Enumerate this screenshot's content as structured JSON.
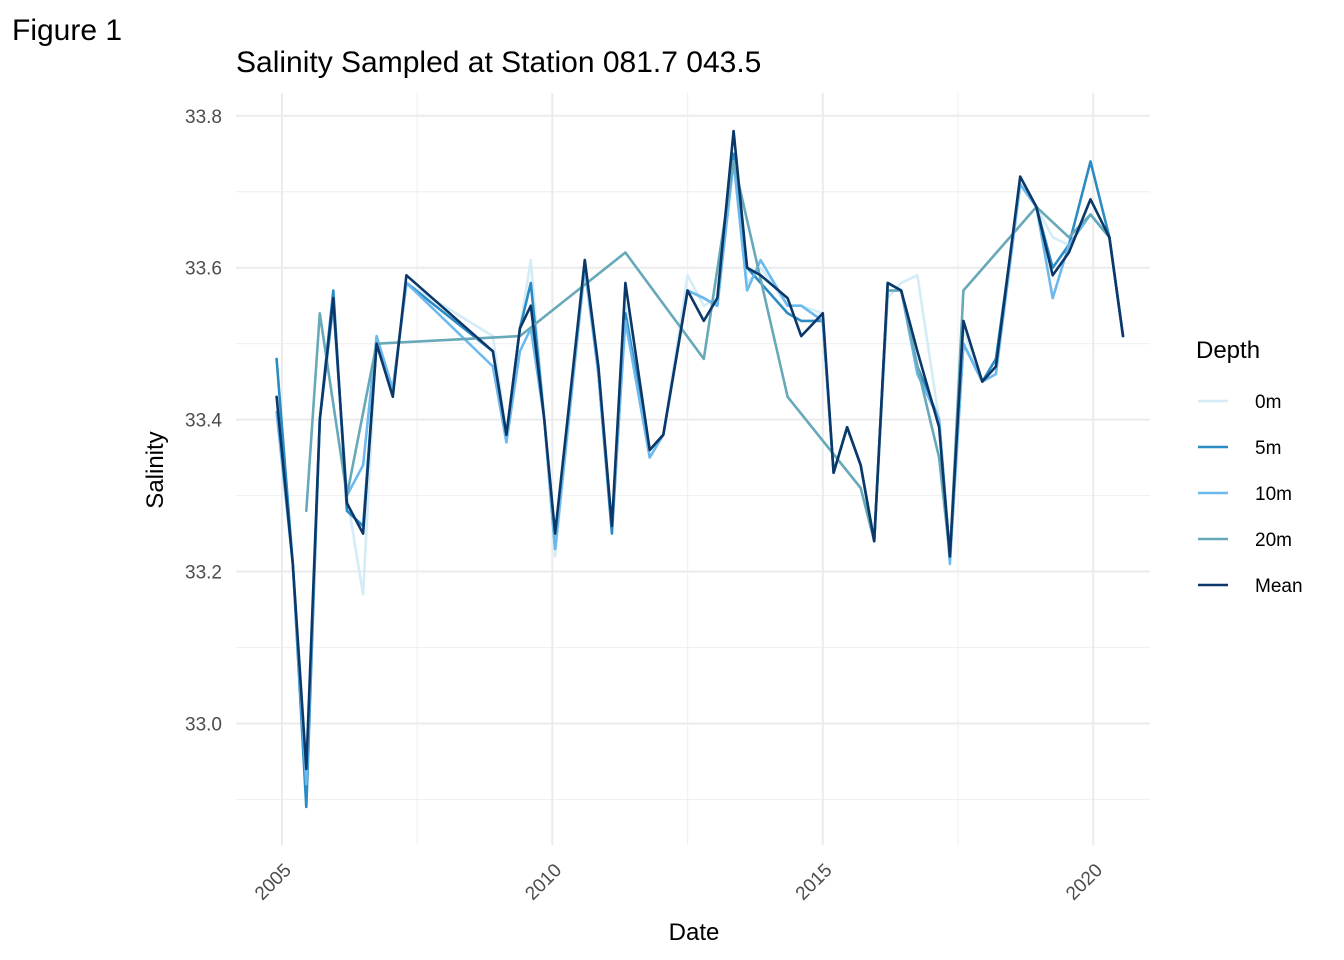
{
  "figure_label": "Figure 1",
  "chart_data": {
    "type": "line",
    "title": "Salinity Sampled at Station 081.7 043.5",
    "xlabel": "Date",
    "ylabel": "Salinity",
    "xlim": [
      2004.15,
      2021.05
    ],
    "ylim": [
      32.84,
      33.83
    ],
    "x_ticks": [
      2005,
      2010,
      2015,
      2020
    ],
    "x_tick_labels": [
      "2005",
      "2010",
      "2015",
      "2020"
    ],
    "y_ticks": [
      33.0,
      33.2,
      33.4,
      33.6,
      33.8
    ],
    "y_tick_labels": [
      "33.0",
      "33.2",
      "33.4",
      "33.6",
      "33.8"
    ],
    "grid": true,
    "legend_title": "Depth",
    "legend_position": "right",
    "series": [
      {
        "name": "0m",
        "color": "#d4ecf5",
        "points": [
          [
            2004.9,
            33.41
          ],
          [
            2005.2,
            33.21
          ],
          [
            2005.45,
            32.95
          ],
          [
            2005.7,
            33.4
          ],
          [
            2005.95,
            33.55
          ],
          [
            2006.2,
            33.3
          ],
          [
            2006.5,
            33.17
          ],
          [
            2006.75,
            33.51
          ],
          [
            2007.05,
            33.44
          ],
          [
            2007.3,
            33.58
          ],
          [
            2008.9,
            33.51
          ],
          [
            2009.15,
            33.38
          ],
          [
            2009.4,
            33.52
          ],
          [
            2009.6,
            33.61
          ],
          [
            2009.85,
            33.4
          ],
          [
            2010.05,
            33.22
          ],
          [
            2010.6,
            33.6
          ],
          [
            2010.85,
            33.46
          ],
          [
            2011.1,
            33.26
          ],
          [
            2011.35,
            33.55
          ],
          [
            2011.8,
            33.36
          ],
          [
            2012.05,
            33.38
          ],
          [
            2012.5,
            33.59
          ],
          [
            2012.8,
            33.55
          ],
          [
            2013.05,
            33.56
          ],
          [
            2013.35,
            33.75
          ],
          [
            2013.6,
            33.58
          ],
          [
            2013.85,
            33.6
          ],
          [
            2014.35,
            33.55
          ],
          [
            2014.6,
            33.55
          ],
          [
            2015.0,
            33.54
          ],
          [
            2015.2,
            33.33
          ],
          [
            2015.45,
            33.39
          ],
          [
            2015.7,
            33.34
          ],
          [
            2015.95,
            33.24
          ],
          [
            2016.2,
            33.56
          ],
          [
            2016.45,
            33.58
          ],
          [
            2016.75,
            33.59
          ],
          [
            2017.15,
            33.4
          ],
          [
            2017.35,
            33.22
          ],
          [
            2017.6,
            33.52
          ],
          [
            2017.95,
            33.45
          ],
          [
            2018.2,
            33.47
          ],
          [
            2018.65,
            33.71
          ],
          [
            2018.95,
            33.68
          ],
          [
            2019.25,
            33.64
          ],
          [
            2019.55,
            33.63
          ],
          [
            2019.95,
            33.67
          ],
          [
            2020.3,
            33.64
          ],
          [
            2020.55,
            33.51
          ]
        ]
      },
      {
        "name": "5m",
        "color": "#2b8cc4",
        "points": [
          [
            2004.9,
            33.48
          ],
          [
            2005.2,
            33.21
          ],
          [
            2005.45,
            32.89
          ],
          [
            2005.7,
            33.4
          ],
          [
            2005.95,
            33.57
          ],
          [
            2006.2,
            33.28
          ],
          [
            2006.5,
            33.26
          ],
          [
            2006.75,
            33.5
          ],
          [
            2007.05,
            33.44
          ],
          [
            2007.3,
            33.58
          ],
          [
            2008.9,
            33.49
          ],
          [
            2009.15,
            33.38
          ],
          [
            2009.4,
            33.52
          ],
          [
            2009.6,
            33.58
          ],
          [
            2009.85,
            33.4
          ],
          [
            2010.05,
            33.23
          ],
          [
            2010.6,
            33.61
          ],
          [
            2010.85,
            33.46
          ],
          [
            2011.1,
            33.25
          ],
          [
            2011.35,
            33.54
          ],
          [
            2011.8,
            33.36
          ],
          [
            2012.05,
            33.38
          ],
          [
            2012.5,
            33.57
          ],
          [
            2012.8,
            33.56
          ],
          [
            2013.05,
            33.55
          ],
          [
            2013.35,
            33.75
          ],
          [
            2013.6,
            33.6
          ],
          [
            2013.85,
            33.58
          ],
          [
            2014.35,
            33.54
          ],
          [
            2014.6,
            33.53
          ],
          [
            2015.0,
            33.53
          ],
          [
            2015.2,
            33.33
          ],
          [
            2015.45,
            33.39
          ],
          [
            2015.7,
            33.34
          ],
          [
            2015.95,
            33.24
          ],
          [
            2016.2,
            33.58
          ],
          [
            2016.45,
            33.57
          ],
          [
            2016.75,
            33.47
          ],
          [
            2017.15,
            33.4
          ],
          [
            2017.35,
            33.22
          ],
          [
            2017.6,
            33.5
          ],
          [
            2017.95,
            33.45
          ],
          [
            2018.2,
            33.48
          ],
          [
            2018.65,
            33.71
          ],
          [
            2018.95,
            33.68
          ],
          [
            2019.25,
            33.6
          ],
          [
            2019.55,
            33.63
          ],
          [
            2019.95,
            33.74
          ],
          [
            2020.3,
            33.64
          ],
          [
            2020.55,
            33.51
          ]
        ]
      },
      {
        "name": "10m",
        "color": "#6cb9ee",
        "points": [
          [
            2004.9,
            33.41
          ],
          [
            2005.2,
            33.21
          ],
          [
            2005.45,
            32.92
          ],
          [
            2005.7,
            33.4
          ],
          [
            2005.95,
            33.55
          ],
          [
            2006.2,
            33.3
          ],
          [
            2006.5,
            33.34
          ],
          [
            2006.75,
            33.51
          ],
          [
            2007.05,
            33.44
          ],
          [
            2007.3,
            33.58
          ],
          [
            2008.9,
            33.47
          ],
          [
            2009.15,
            33.37
          ],
          [
            2009.4,
            33.49
          ],
          [
            2009.6,
            33.52
          ],
          [
            2009.85,
            33.4
          ],
          [
            2010.05,
            33.23
          ],
          [
            2010.6,
            33.6
          ],
          [
            2010.85,
            33.46
          ],
          [
            2011.1,
            33.26
          ],
          [
            2011.35,
            33.53
          ],
          [
            2011.8,
            33.35
          ],
          [
            2012.05,
            33.38
          ],
          [
            2012.5,
            33.57
          ],
          [
            2012.8,
            33.56
          ],
          [
            2013.05,
            33.55
          ],
          [
            2013.35,
            33.74
          ],
          [
            2013.6,
            33.57
          ],
          [
            2013.85,
            33.61
          ],
          [
            2014.35,
            33.55
          ],
          [
            2014.6,
            33.55
          ],
          [
            2015.0,
            33.53
          ],
          [
            2015.2,
            33.33
          ],
          [
            2015.45,
            33.39
          ],
          [
            2015.7,
            33.34
          ],
          [
            2015.95,
            33.24
          ],
          [
            2016.2,
            33.57
          ],
          [
            2016.45,
            33.57
          ],
          [
            2016.75,
            33.46
          ],
          [
            2017.15,
            33.4
          ],
          [
            2017.35,
            33.21
          ],
          [
            2017.6,
            33.5
          ],
          [
            2017.95,
            33.45
          ],
          [
            2018.2,
            33.46
          ],
          [
            2018.65,
            33.71
          ],
          [
            2018.95,
            33.68
          ],
          [
            2019.25,
            33.56
          ],
          [
            2019.55,
            33.63
          ],
          [
            2019.95,
            33.67
          ],
          [
            2020.3,
            33.64
          ],
          [
            2020.55,
            33.51
          ]
        ]
      },
      {
        "name": "20m",
        "color": "#67a9b8",
        "points": [
          [
            2005.45,
            33.28
          ],
          [
            2005.7,
            33.54
          ],
          [
            2006.2,
            33.3
          ],
          [
            2006.75,
            33.5
          ],
          [
            2009.4,
            33.51
          ],
          [
            2011.35,
            33.62
          ],
          [
            2012.8,
            33.48
          ],
          [
            2013.35,
            33.74
          ],
          [
            2014.35,
            33.43
          ],
          [
            2015.7,
            33.31
          ],
          [
            2015.95,
            33.24
          ],
          [
            2016.2,
            33.57
          ],
          [
            2016.45,
            33.57
          ],
          [
            2016.75,
            33.47
          ],
          [
            2017.15,
            33.35
          ],
          [
            2017.35,
            33.22
          ],
          [
            2017.6,
            33.57
          ],
          [
            2018.95,
            33.68
          ],
          [
            2019.55,
            33.64
          ],
          [
            2019.95,
            33.67
          ],
          [
            2020.3,
            33.64
          ],
          [
            2020.55,
            33.51
          ]
        ]
      },
      {
        "name": "Mean",
        "color": "#0b3868",
        "points": [
          [
            2004.9,
            33.43
          ],
          [
            2005.2,
            33.21
          ],
          [
            2005.45,
            32.94
          ],
          [
            2005.7,
            33.4
          ],
          [
            2005.95,
            33.56
          ],
          [
            2006.2,
            33.29
          ],
          [
            2006.5,
            33.25
          ],
          [
            2006.75,
            33.5
          ],
          [
            2007.05,
            33.43
          ],
          [
            2007.3,
            33.59
          ],
          [
            2008.9,
            33.49
          ],
          [
            2009.15,
            33.38
          ],
          [
            2009.4,
            33.52
          ],
          [
            2009.6,
            33.55
          ],
          [
            2009.85,
            33.4
          ],
          [
            2010.05,
            33.25
          ],
          [
            2010.6,
            33.61
          ],
          [
            2010.85,
            33.47
          ],
          [
            2011.1,
            33.26
          ],
          [
            2011.35,
            33.58
          ],
          [
            2011.8,
            33.36
          ],
          [
            2012.05,
            33.38
          ],
          [
            2012.5,
            33.57
          ],
          [
            2012.8,
            33.53
          ],
          [
            2013.05,
            33.56
          ],
          [
            2013.35,
            33.78
          ],
          [
            2013.6,
            33.6
          ],
          [
            2013.85,
            33.59
          ],
          [
            2014.35,
            33.56
          ],
          [
            2014.6,
            33.51
          ],
          [
            2015.0,
            33.54
          ],
          [
            2015.2,
            33.33
          ],
          [
            2015.45,
            33.39
          ],
          [
            2015.7,
            33.34
          ],
          [
            2015.95,
            33.24
          ],
          [
            2016.2,
            33.58
          ],
          [
            2016.45,
            33.57
          ],
          [
            2016.75,
            33.49
          ],
          [
            2017.15,
            33.39
          ],
          [
            2017.35,
            33.22
          ],
          [
            2017.6,
            33.53
          ],
          [
            2017.95,
            33.45
          ],
          [
            2018.2,
            33.47
          ],
          [
            2018.65,
            33.72
          ],
          [
            2018.95,
            33.68
          ],
          [
            2019.25,
            33.59
          ],
          [
            2019.55,
            33.62
          ],
          [
            2019.95,
            33.69
          ],
          [
            2020.3,
            33.64
          ],
          [
            2020.55,
            33.51
          ]
        ]
      }
    ]
  }
}
